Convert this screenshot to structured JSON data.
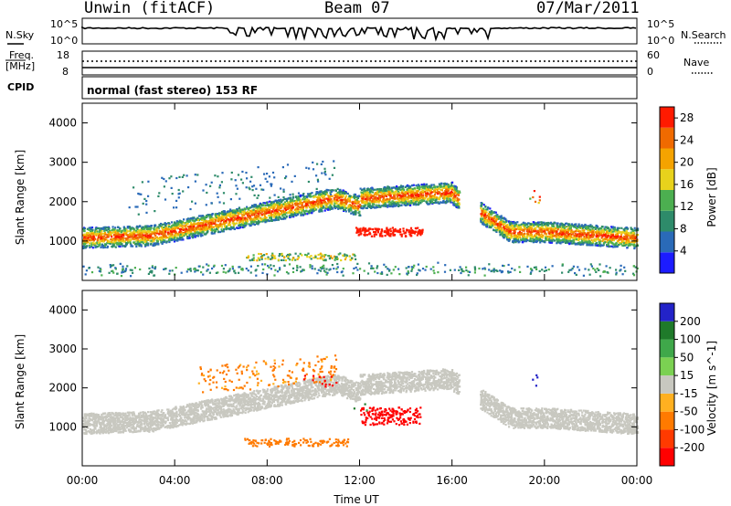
{
  "header": {
    "radar": "Unwin (fitACF)",
    "beam": "Beam 07",
    "date": "07/Mar/2011"
  },
  "strips": {
    "nsky": {
      "label": "N.Sky",
      "ticks": [
        "10^5",
        "10^0"
      ]
    },
    "nsearch": {
      "label": "N.Search",
      "ticks": [
        "10^5",
        "10^0"
      ]
    },
    "freq": {
      "label_top": "Freq.",
      "label_unit": "[MHz]",
      "ticks": [
        "18",
        "8"
      ]
    },
    "nave": {
      "label": "Nave",
      "ticks": [
        "60",
        "0"
      ]
    },
    "cpid": {
      "label": "CPID",
      "value": "normal (fast stereo) 153 RF"
    }
  },
  "chart_data": [
    {
      "type": "heatmap",
      "panel": "power",
      "ylabel": "Slant Range [km]",
      "xlabel": "",
      "ylim": [
        0,
        4500
      ],
      "yticks": [
        1000,
        2000,
        3000,
        4000
      ],
      "xlim": [
        0,
        24
      ],
      "colorbar": {
        "label": "Power [dB]",
        "ticks": [
          4,
          8,
          12,
          16,
          20,
          24,
          28
        ],
        "range": [
          0,
          30
        ],
        "colors": [
          "#1c1cff",
          "#2a6ab8",
          "#2e8b6a",
          "#4caf50",
          "#e8d21c",
          "#f5a300",
          "#f06a00",
          "#ff1a00"
        ]
      }
    },
    {
      "type": "heatmap",
      "panel": "velocity",
      "ylabel": "Slant Range [km]",
      "xlabel": "Time UT",
      "ylim": [
        0,
        4500
      ],
      "yticks": [
        1000,
        2000,
        3000,
        4000
      ],
      "xlim": [
        0,
        24
      ],
      "xticks": [
        "00:00",
        "04:00",
        "08:00",
        "12:00",
        "16:00",
        "20:00",
        "00:00"
      ],
      "colorbar": {
        "label": "Velocity [m s^-1]",
        "ticks": [
          "200",
          "100",
          "50",
          "15",
          "-15",
          "-50",
          "-100",
          "-200"
        ],
        "colors": [
          "#2323c8",
          "#1f7a2a",
          "#3fa84a",
          "#7bd152",
          "#c8c8c0",
          "#ffb020",
          "#ff7a00",
          "#ff3a00",
          "#ff0000"
        ]
      }
    }
  ]
}
